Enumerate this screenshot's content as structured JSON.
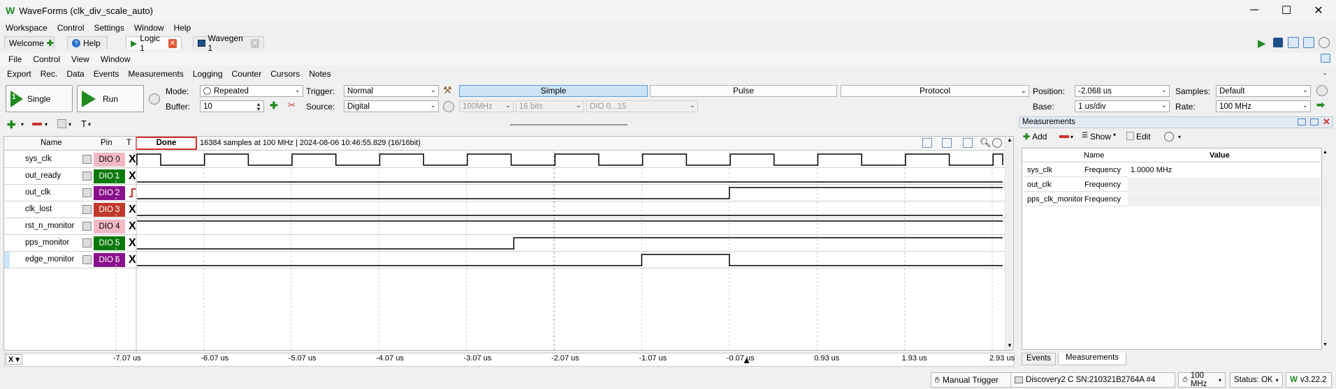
{
  "window": {
    "title": "WaveForms (clk_div_scale_auto)",
    "minimize": "─",
    "maximize": "☐",
    "close": "✕"
  },
  "menu": [
    "Workspace",
    "Control",
    "Settings",
    "Window",
    "Help"
  ],
  "tabs": [
    {
      "label": "Welcome",
      "icon": "plus-icon"
    },
    {
      "label": "Help",
      "icon": "help-icon"
    },
    {
      "label": "Logic 1",
      "icon": "play-icon"
    },
    {
      "label": "Wavegen 1",
      "icon": "wavegen-icon"
    }
  ],
  "instrument_menu": [
    "File",
    "Control",
    "View",
    "Window"
  ],
  "toolbar2": [
    "Export",
    "Rec.",
    "Data",
    "Events",
    "Measurements",
    "Logging",
    "Counter",
    "Cursors",
    "Notes"
  ],
  "controls": {
    "single": "Single",
    "single_badge": "1",
    "run": "Run",
    "mode_label": "Mode:",
    "mode_value": "Repeated",
    "buffer_label": "Buffer:",
    "buffer_value": "10",
    "trigger_label": "Trigger:",
    "trigger_value": "Normal",
    "source_label": "Source:",
    "source_value": "Digital",
    "trigger_modes": [
      "Simple",
      "Pulse",
      "Protocol"
    ],
    "rate_disabled": "100MHz",
    "bits_disabled": "16 bits",
    "dio_disabled": "DIO 0...15",
    "position_label": "Position:",
    "position_value": "-2.068 us",
    "base_label": "Base:",
    "base_value": "1 us/div",
    "samples_label": "Samples:",
    "samples_value": "Default",
    "rate_label": "Rate:",
    "rate_value": "100 MHz"
  },
  "channels_header": {
    "name": "Name",
    "pin": "Pin",
    "t": "T"
  },
  "acquisition": {
    "status": "Done",
    "info": "16384 samples at 100 MHz | 2024-08-06 10:46:55.829 (16/16bit)"
  },
  "channels": [
    {
      "name": "sys_clk",
      "pin": "DIO 0",
      "pin_color": "#f4b8c4",
      "pin_text": "#000000",
      "trigger": "X"
    },
    {
      "name": "out_ready",
      "pin": "DIO 1",
      "pin_color": "#0a7a0a",
      "pin_text": "#ffffff",
      "trigger": "X"
    },
    {
      "name": "out_clk",
      "pin": "DIO 2",
      "pin_color": "#8a0f8a",
      "pin_text": "#ffffff",
      "trigger": "rise"
    },
    {
      "name": "clk_lost",
      "pin": "DIO 3",
      "pin_color": "#c0392b",
      "pin_text": "#ffffff",
      "trigger": "X"
    },
    {
      "name": "rst_n_monitor",
      "pin": "DIO 4",
      "pin_color": "#f4b8c4",
      "pin_text": "#000000",
      "trigger": "X"
    },
    {
      "name": "pps_monitor",
      "pin": "DIO 5",
      "pin_color": "#0a7a0a",
      "pin_text": "#ffffff",
      "trigger": "X"
    },
    {
      "name": "edge_monitor",
      "pin": "DIO 6",
      "pin_color": "#8a0f8a",
      "pin_text": "#ffffff",
      "trigger": "X"
    }
  ],
  "x_axis": [
    "-7.07 us",
    "-6.07 us",
    "-5.07 us",
    "-4.07 us",
    "-3.07 us",
    "-2.07 us",
    "-1.07 us",
    "-0.07 us",
    "0.93 us",
    "1.93 us",
    "2.93 us"
  ],
  "x_axis_left": "X",
  "measurements": {
    "title": "Measurements",
    "add": "Add",
    "show": "Show",
    "edit": "Edit",
    "col_name": "Name",
    "col_value": "Value",
    "rows": [
      {
        "channel": "sys_clk",
        "name": "Frequency",
        "value": "1.0000 MHz"
      },
      {
        "channel": "out_clk",
        "name": "Frequency",
        "value": ""
      },
      {
        "channel": "pps_clk_monitor",
        "name": "Frequency",
        "value": ""
      }
    ],
    "bottom_tabs": [
      "Events",
      "Measurements"
    ]
  },
  "statusbar": {
    "manual_trigger": "Manual Trigger",
    "device": "Discovery2 C SN:210321B2764A #4",
    "clock": "100 MHz",
    "status": "Status: OK",
    "version": "v3.22.2"
  },
  "colors": {
    "accent_green": "#1f8a1f",
    "close_red": "#e05a3a",
    "selection_blue": "#cbe4f7"
  }
}
